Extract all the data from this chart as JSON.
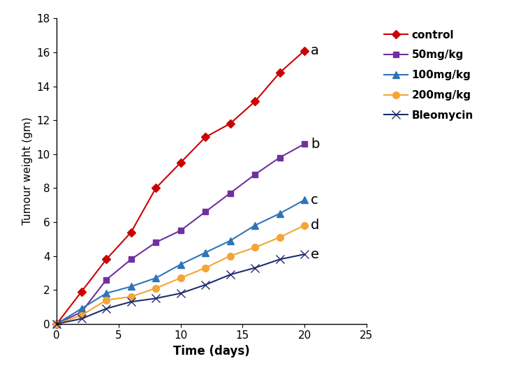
{
  "series": [
    {
      "label": "control",
      "color": "#cc0000",
      "marker": "D",
      "markersize": 6,
      "x": [
        0,
        2,
        4,
        6,
        8,
        10,
        12,
        14,
        16,
        18,
        20
      ],
      "y": [
        0,
        1.9,
        3.8,
        5.4,
        8.0,
        9.5,
        11.0,
        11.8,
        13.1,
        14.8,
        16.1
      ],
      "annotation": "a"
    },
    {
      "label": "50mg/kg",
      "color": "#7030a0",
      "marker": "s",
      "markersize": 6,
      "x": [
        0,
        2,
        4,
        6,
        8,
        10,
        12,
        14,
        16,
        18,
        20
      ],
      "y": [
        0,
        0.7,
        2.6,
        3.8,
        4.8,
        5.5,
        6.6,
        7.7,
        8.8,
        9.8,
        10.6
      ],
      "annotation": "b"
    },
    {
      "label": "100mg/kg",
      "color": "#2e75b6",
      "marker": "^",
      "markersize": 7,
      "x": [
        0,
        2,
        4,
        6,
        8,
        10,
        12,
        14,
        16,
        18,
        20
      ],
      "y": [
        0,
        0.9,
        1.8,
        2.2,
        2.7,
        3.5,
        4.2,
        4.9,
        5.8,
        6.5,
        7.3
      ],
      "annotation": "c"
    },
    {
      "label": "200mg/kg",
      "color": "#f4a535",
      "marker": "o",
      "markersize": 7,
      "x": [
        0,
        2,
        4,
        6,
        8,
        10,
        12,
        14,
        16,
        18,
        20
      ],
      "y": [
        0,
        0.5,
        1.4,
        1.6,
        2.1,
        2.7,
        3.3,
        4.0,
        4.5,
        5.1,
        5.8
      ],
      "annotation": "d"
    },
    {
      "label": "Bleomycin",
      "color": "#1f2d6e",
      "marker": "x",
      "markersize": 8,
      "x": [
        0,
        2,
        4,
        6,
        8,
        10,
        12,
        14,
        16,
        18,
        20
      ],
      "y": [
        0,
        0.3,
        0.9,
        1.3,
        1.5,
        1.8,
        2.3,
        2.9,
        3.3,
        3.8,
        4.1
      ],
      "annotation": "e"
    }
  ],
  "xlabel": "Time (days)",
  "ylabel": "Tumour weight (gm)",
  "xlim": [
    0,
    25
  ],
  "ylim": [
    0,
    18
  ],
  "xticks": [
    0,
    5,
    10,
    15,
    20,
    25
  ],
  "yticks": [
    0,
    2,
    4,
    6,
    8,
    10,
    12,
    14,
    16,
    18
  ],
  "background_color": "#ffffff",
  "linewidth": 1.5,
  "xlabel_fontsize": 12,
  "ylabel_fontsize": 11,
  "tick_fontsize": 11,
  "legend_fontsize": 11,
  "annotation_fontsize": 14
}
